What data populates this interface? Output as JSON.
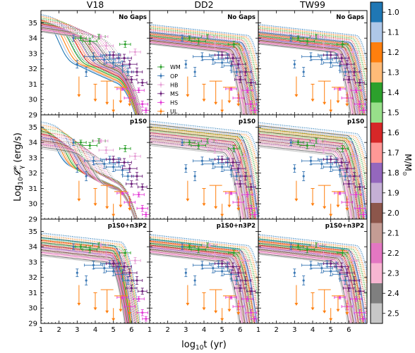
{
  "chart_data": {
    "type": "line",
    "columns": [
      "V18",
      "DD2",
      "TW99"
    ],
    "rows": [
      "No Gaps",
      "p1S0",
      "p1S0+n3P2"
    ],
    "xlabel": "log$_{10}$t (yr)",
    "xlabel_text": "log",
    "xlabel_sub": "10",
    "xlabel_tail": "t (yr)",
    "ylabel": "Log$_{10}\\mathcal{L}^\\infty_\\gamma$ (erg/s)",
    "ylabel_head": "Log",
    "ylabel_sub": "10",
    "ylabel_L": "𝓛",
    "ylabel_sup": "∞",
    "ylabel_gamma": "γ",
    "ylabel_tail": " (erg/s)",
    "xlim": [
      1,
      7
    ],
    "ylim": [
      29,
      35.8
    ],
    "xticks": [
      "1",
      "2",
      "3",
      "4",
      "5",
      "6"
    ],
    "yticks": [
      "29",
      "30",
      "31",
      "32",
      "33",
      "34",
      "35"
    ],
    "legend": {
      "placement": "DD2 No Gaps panel, left",
      "entries": [
        {
          "label": "WM",
          "color": "#2ca02c"
        },
        {
          "label": "OP",
          "color": "#3a78b5"
        },
        {
          "label": "HB",
          "color": "#e6a0d6"
        },
        {
          "label": "MS",
          "color": "#6b1f7a"
        },
        {
          "label": "HS",
          "color": "#e33bd6"
        },
        {
          "label": "UL",
          "color": "#ff7f0e"
        }
      ]
    },
    "colorbar": {
      "label": "M/M",
      "label_sub": "⊙",
      "ticks": [
        "1.0",
        "1.1",
        "1.2",
        "1.3",
        "1.4",
        "1.5",
        "1.6",
        "1.7",
        "1.8",
        "1.9",
        "2.0",
        "2.1",
        "2.2",
        "2.3",
        "2.4",
        "2.5"
      ],
      "colors": [
        "#1f77b4",
        "#aec7e8",
        "#ff7f0e",
        "#ffbb78",
        "#2ca02c",
        "#98df8a",
        "#d62728",
        "#ff9896",
        "#9467bd",
        "#c5b0d5",
        "#8c564b",
        "#c49c94",
        "#e377c2",
        "#f7b6d2",
        "#7f7f7f",
        "#c7c7c7"
      ]
    },
    "observations": [
      {
        "cls": "WM",
        "x": 3.2,
        "y": 34.0,
        "xe": 0.3,
        "ye": 0.15
      },
      {
        "cls": "WM",
        "x": 3.7,
        "y": 33.8,
        "xe": 0.4,
        "ye": 0.2
      },
      {
        "cls": "WM",
        "x": 4.2,
        "y": 34.1,
        "xe": 0.35,
        "ye": 0.15
      },
      {
        "cls": "WM",
        "x": 5.65,
        "y": 33.6,
        "xe": 0.3,
        "ye": 0.2
      },
      {
        "cls": "OP",
        "x": 2.8,
        "y": 34.0,
        "xe": 0.0,
        "ye": 0.2
      },
      {
        "cls": "OP",
        "x": 3.0,
        "y": 32.3,
        "xe": 0.0,
        "ye": 0.25
      },
      {
        "cls": "OP",
        "x": 3.5,
        "y": 31.8,
        "xe": 0.0,
        "ye": 0.3
      },
      {
        "cls": "OP",
        "x": 3.9,
        "y": 32.8,
        "xe": 0.5,
        "ye": 0.25
      },
      {
        "cls": "OP",
        "x": 4.5,
        "y": 32.6,
        "xe": 0.6,
        "ye": 0.3
      },
      {
        "cls": "OP",
        "x": 4.8,
        "y": 32.9,
        "xe": 0.5,
        "ye": 0.2
      },
      {
        "cls": "OP",
        "x": 5.0,
        "y": 32.4,
        "xe": 0.4,
        "ye": 0.3
      },
      {
        "cls": "OP",
        "x": 5.3,
        "y": 32.7,
        "xe": 0.5,
        "ye": 0.3
      },
      {
        "cls": "OP",
        "x": 5.5,
        "y": 32.2,
        "xe": 0.4,
        "ye": 0.3
      },
      {
        "cls": "OP",
        "x": 5.8,
        "y": 31.8,
        "xe": 0.3,
        "ye": 0.25
      },
      {
        "cls": "HB",
        "x": 4.3,
        "y": 34.1,
        "xe": 0.4,
        "ye": 0.1
      },
      {
        "cls": "HB",
        "x": 4.6,
        "y": 33.5,
        "xe": 0.4,
        "ye": 0.2
      },
      {
        "cls": "HB",
        "x": 6.2,
        "y": 33.1,
        "xe": 0.3,
        "ye": 0.2
      },
      {
        "cls": "MS",
        "x": 5.0,
        "y": 32.9,
        "xe": 0.4,
        "ye": 0.2
      },
      {
        "cls": "MS",
        "x": 5.6,
        "y": 32.7,
        "xe": 0.4,
        "ye": 0.25
      },
      {
        "cls": "MS",
        "x": 5.9,
        "y": 32.3,
        "xe": 0.4,
        "ye": 0.25
      },
      {
        "cls": "MS",
        "x": 6.0,
        "y": 31.3,
        "xe": 0.3,
        "ye": 0.2
      },
      {
        "cls": "MS",
        "x": 6.3,
        "y": 31.8,
        "xe": 0.3,
        "ye": 0.25
      },
      {
        "cls": "MS",
        "x": 6.6,
        "y": 31.1,
        "xe": 0.25,
        "ye": 0.2
      },
      {
        "cls": "HS",
        "x": 5.5,
        "y": 30.7,
        "xe": 0.3,
        "ye": 0.1
      },
      {
        "cls": "HS",
        "x": 5.9,
        "y": 30.1,
        "xe": 0.3,
        "ye": 0.2
      },
      {
        "cls": "HS",
        "x": 6.4,
        "y": 30.6,
        "xe": 0.3,
        "ye": 0.15
      },
      {
        "cls": "HS",
        "x": 6.6,
        "y": 29.7,
        "xe": 0.3,
        "ye": 0.2
      },
      {
        "cls": "HS",
        "x": 6.8,
        "y": 29.3,
        "xe": 0.2,
        "ye": 0.15
      },
      {
        "cls": "UL",
        "x": 3.1,
        "y": 31.5,
        "xe": 0.0,
        "ye": 0.0,
        "drop": 1.3
      },
      {
        "cls": "UL",
        "x": 4.0,
        "y": 31.0,
        "xe": 0.1,
        "ye": 0.0,
        "drop": 1.1
      },
      {
        "cls": "UL",
        "x": 4.65,
        "y": 31.2,
        "xe": 0.35,
        "ye": 0.0,
        "drop": 1.5
      },
      {
        "cls": "UL",
        "x": 5.0,
        "y": 30.0,
        "xe": 0.0,
        "ye": 0.0,
        "drop": 0.8
      },
      {
        "cls": "UL",
        "x": 5.4,
        "y": 30.8,
        "xe": 0.35,
        "ye": 0.0,
        "drop": 1.0
      },
      {
        "cls": "UL",
        "x": 5.9,
        "y": 30.5,
        "xe": 0.0,
        "ye": 0.0,
        "drop": 0.9
      }
    ]
  }
}
